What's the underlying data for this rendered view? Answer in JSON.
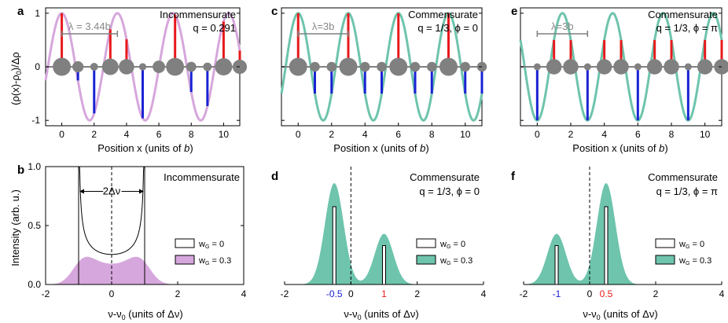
{
  "colors": {
    "purple": "#d6a7dc",
    "green": "#6ec4ac",
    "red": "#e8191c",
    "blue": "#1a22d4",
    "atom": "#808080",
    "lambda": "#808080",
    "annot_blue": "#1a22d4",
    "annot_red": "#e8191c"
  },
  "common": {
    "top_xlabel": "Position x (units of b)",
    "top_ylabel": "(ρ(x)-ρ0)/Δρ",
    "bottom_ylabel": "Intensity (arb. u.)",
    "bottom_xlabel": "ν-ν0 (units of Δν)",
    "bottom_xlabel_b": "ν-ν0 (units of Δν)",
    "legend_w0": "wG = 0",
    "legend_w03": "wG = 0.3"
  },
  "chart_data": [
    {
      "panel": "a",
      "type": "line",
      "title": "Incommensurate",
      "subtitle": "q = 0.291",
      "lambda_label": "λ = 3.44b",
      "x": {
        "min": -1,
        "max": 11,
        "ticks": [
          0,
          2,
          4,
          6,
          8,
          10
        ]
      },
      "y": {
        "min": -1.1,
        "max": 1.1,
        "ticks": [
          -1,
          0,
          1
        ]
      },
      "q": 0.291,
      "phi": 0,
      "sites": [
        0,
        1,
        2,
        3,
        4,
        5,
        6,
        7,
        8,
        9,
        10,
        11
      ],
      "curve_color": "purple"
    },
    {
      "panel": "c",
      "type": "line",
      "title": "Commensurate",
      "subtitle": "q = 1/3, ϕ = 0",
      "lambda_label": "λ=3b",
      "x": {
        "min": -1,
        "max": 11,
        "ticks": [
          0,
          2,
          4,
          6,
          8,
          10
        ]
      },
      "y": {
        "min": -1.1,
        "max": 1.1,
        "ticks": [
          -1,
          0,
          1
        ]
      },
      "q": 0.3333333,
      "phi": 0,
      "sites": [
        0,
        1,
        2,
        3,
        4,
        5,
        6,
        7,
        8,
        9,
        10,
        11
      ],
      "curve_color": "green"
    },
    {
      "panel": "e",
      "type": "line",
      "title": "Commensurate",
      "subtitle": "q = 1/3, ϕ = π",
      "lambda_label": "λ=3b",
      "x": {
        "min": -1,
        "max": 11,
        "ticks": [
          0,
          2,
          4,
          6,
          8,
          10
        ]
      },
      "y": {
        "min": -1.1,
        "max": 1.1,
        "ticks": [
          -1,
          0,
          1
        ]
      },
      "q": 0.3333333,
      "phi": 3.14159265,
      "sites": [
        0,
        1,
        2,
        3,
        4,
        5,
        6,
        7,
        8,
        9,
        10,
        11
      ],
      "curve_color": "green"
    },
    {
      "panel": "b",
      "type": "area",
      "title": "Incommensurate",
      "delta_label": "2Δν",
      "x": {
        "min": -2,
        "max": 4,
        "ticks": [
          -2,
          0,
          2,
          4
        ]
      },
      "y": {
        "min": 0,
        "max": 1.0,
        "ticks": [
          0.0,
          0.5,
          1.0
        ]
      },
      "spectrum": "incommensurate",
      "fill_color": "purple"
    },
    {
      "panel": "d",
      "type": "area",
      "title": "Commensurate",
      "subtitle": "q = 1/3, ϕ = 0",
      "x": {
        "min": -2,
        "max": 4,
        "ticks": [
          -2,
          0,
          2,
          4
        ]
      },
      "y": {
        "min": 0,
        "max": 1.0,
        "ticks": []
      },
      "peaks": [
        {
          "x": -0.5,
          "amp": 0.86,
          "stick": 0.66
        },
        {
          "x": 1,
          "amp": 0.43,
          "stick": 0.33
        }
      ],
      "annotations": [
        {
          "text": "-0.5",
          "x": -0.5,
          "color": "annot_blue"
        },
        {
          "text": "1",
          "x": 1,
          "color": "annot_red"
        }
      ],
      "fill_color": "green"
    },
    {
      "panel": "f",
      "type": "area",
      "title": "Commensurate",
      "subtitle": "q = 1/3, ϕ = π",
      "x": {
        "min": -2,
        "max": 4,
        "ticks": [
          -2,
          0,
          2,
          4
        ]
      },
      "y": {
        "min": 0,
        "max": 1.0,
        "ticks": []
      },
      "peaks": [
        {
          "x": -1,
          "amp": 0.43,
          "stick": 0.33
        },
        {
          "x": 0.5,
          "amp": 0.86,
          "stick": 0.66
        }
      ],
      "annotations": [
        {
          "text": "-1",
          "x": -1,
          "color": "annot_blue"
        },
        {
          "text": "0.5",
          "x": 0.5,
          "color": "annot_red"
        }
      ],
      "fill_color": "green"
    }
  ]
}
